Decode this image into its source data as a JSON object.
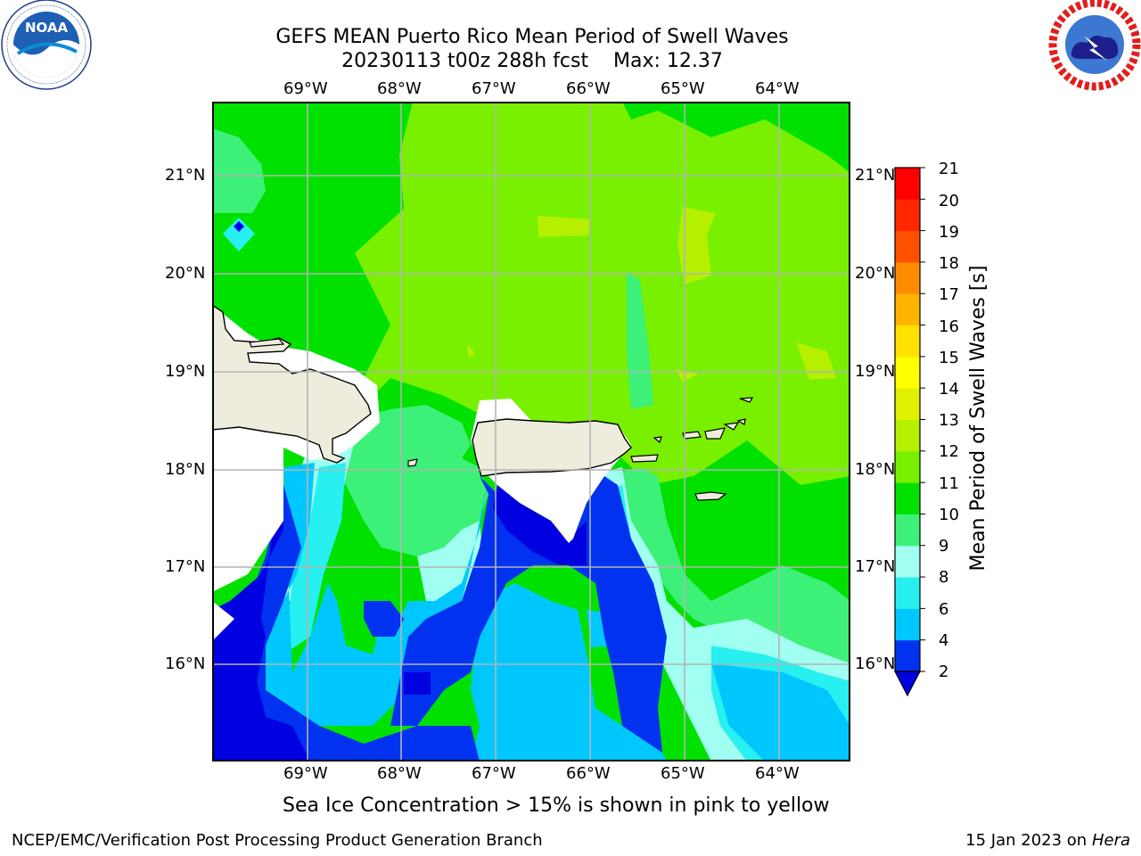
{
  "title": {
    "line1": "GEFS MEAN Puerto Rico Mean Period of Swell Waves",
    "line2": "20230113 t00z 288h fcst    Max: 12.37"
  },
  "axes": {
    "lon_labels": [
      "69°W",
      "68°W",
      "67°W",
      "66°W",
      "65°W",
      "64°W"
    ],
    "lat_labels": [
      "21°N",
      "20°N",
      "19°N",
      "18°N",
      "17°N",
      "16°N"
    ]
  },
  "colorbar": {
    "label": "Mean Period of Swell Waves [s]",
    "ticks": [
      "2",
      "4",
      "6",
      "8",
      "9",
      "10",
      "11",
      "12",
      "13",
      "14",
      "15",
      "16",
      "17",
      "18",
      "19",
      "20",
      "21"
    ],
    "colors": [
      "#0032f0",
      "#00c8ff",
      "#28f0f0",
      "#a0fff0",
      "#3cf078",
      "#00e100",
      "#78f000",
      "#b4f000",
      "#e1f000",
      "#ffff00",
      "#ffe100",
      "#ffb400",
      "#ff8c00",
      "#ff5000",
      "#ff2800",
      "#ff0000"
    ],
    "under_color": "#0000e1"
  },
  "note": "Sea Ice Concentration > 15% is shown in pink to yellow",
  "footer": {
    "left": "NCEP/EMC/Verification Post Processing Product Generation Branch",
    "date": "15 Jan 2023 on ",
    "machine": "Hera"
  },
  "logos": {
    "noaa": "NOAA",
    "nws": "NATIONAL WEATHER SERVICE"
  },
  "colors": {
    "land": "#eeecdc",
    "grid": "#b4b4b4",
    "masked": "#ffffff"
  }
}
